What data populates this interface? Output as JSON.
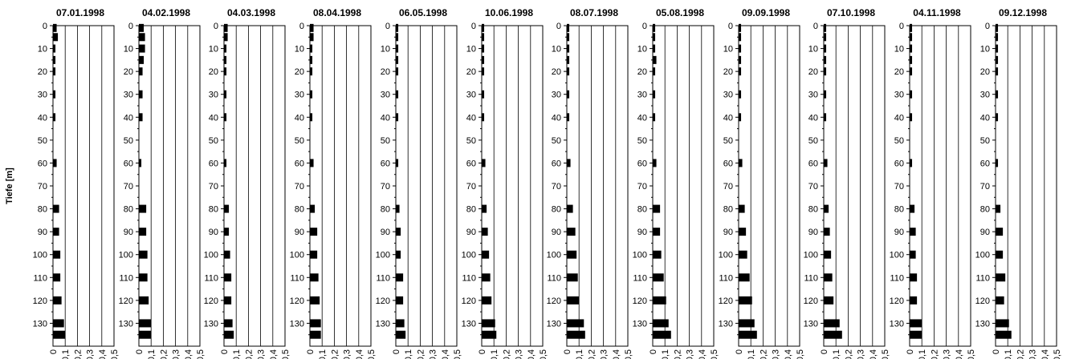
{
  "chart_data": {
    "type": "bar",
    "orientation": "horizontal",
    "ylabel": "Tiefe [m]",
    "depth_ticks": [
      0,
      10,
      20,
      30,
      40,
      50,
      60,
      70,
      80,
      90,
      100,
      110,
      120,
      130
    ],
    "x_ticks": [
      "0",
      "0,1",
      "0,2",
      "0,3",
      "0,4",
      "0,5"
    ],
    "xlim": [
      0,
      0.5
    ],
    "ylim": [
      0,
      140
    ],
    "grid": "vertical",
    "bar_color": "#000000",
    "panels": [
      {
        "title": "07.01.1998",
        "depths": [
          1,
          5,
          10,
          15,
          20,
          30,
          40,
          60,
          80,
          90,
          100,
          110,
          120,
          130,
          135
        ],
        "values": [
          0.03,
          0.04,
          0.02,
          0.02,
          0.02,
          0.02,
          0.02,
          0.03,
          0.05,
          0.05,
          0.06,
          0.06,
          0.07,
          0.09,
          0.1
        ]
      },
      {
        "title": "04.02.1998",
        "depths": [
          1,
          5,
          10,
          15,
          20,
          30,
          40,
          60,
          80,
          90,
          100,
          110,
          120,
          130,
          135
        ],
        "values": [
          0.04,
          0.05,
          0.05,
          0.04,
          0.03,
          0.03,
          0.03,
          0.02,
          0.06,
          0.06,
          0.07,
          0.07,
          0.08,
          0.1,
          0.1
        ]
      },
      {
        "title": "04.03.1998",
        "depths": [
          1,
          5,
          10,
          15,
          20,
          30,
          40,
          60,
          80,
          90,
          100,
          110,
          120,
          130,
          135
        ],
        "values": [
          0.03,
          0.03,
          0.02,
          0.02,
          0.02,
          0.02,
          0.02,
          0.02,
          0.04,
          0.04,
          0.05,
          0.06,
          0.06,
          0.07,
          0.08
        ]
      },
      {
        "title": "08.04.1998",
        "depths": [
          1,
          5,
          10,
          15,
          20,
          30,
          40,
          60,
          80,
          90,
          100,
          110,
          120,
          130,
          135
        ],
        "values": [
          0.03,
          0.03,
          0.02,
          0.02,
          0.02,
          0.02,
          0.02,
          0.03,
          0.04,
          0.06,
          0.06,
          0.07,
          0.08,
          0.09,
          0.09
        ]
      },
      {
        "title": "06.05.1998",
        "depths": [
          1,
          5,
          10,
          15,
          20,
          30,
          40,
          60,
          80,
          90,
          100,
          110,
          120,
          130,
          135
        ],
        "values": [
          0.02,
          0.02,
          0.02,
          0.02,
          0.02,
          0.02,
          0.02,
          0.02,
          0.03,
          0.04,
          0.04,
          0.06,
          0.06,
          0.07,
          0.08
        ]
      },
      {
        "title": "10.06.1998",
        "depths": [
          1,
          5,
          10,
          15,
          20,
          30,
          40,
          60,
          80,
          90,
          100,
          110,
          120,
          130,
          135
        ],
        "values": [
          0.02,
          0.02,
          0.02,
          0.02,
          0.02,
          0.02,
          0.02,
          0.03,
          0.04,
          0.05,
          0.06,
          0.07,
          0.08,
          0.11,
          0.12
        ]
      },
      {
        "title": "08.07.1998",
        "depths": [
          1,
          5,
          10,
          15,
          20,
          30,
          40,
          60,
          80,
          90,
          100,
          110,
          120,
          130,
          135
        ],
        "values": [
          0.02,
          0.02,
          0.02,
          0.02,
          0.02,
          0.02,
          0.02,
          0.03,
          0.05,
          0.07,
          0.08,
          0.09,
          0.1,
          0.14,
          0.15
        ]
      },
      {
        "title": "05.08.1998",
        "depths": [
          1,
          5,
          10,
          15,
          20,
          30,
          40,
          60,
          80,
          90,
          100,
          110,
          120,
          130,
          135
        ],
        "values": [
          0.02,
          0.02,
          0.02,
          0.03,
          0.02,
          0.02,
          0.02,
          0.03,
          0.06,
          0.06,
          0.07,
          0.09,
          0.11,
          0.13,
          0.15
        ]
      },
      {
        "title": "09.09.1998",
        "depths": [
          1,
          5,
          10,
          15,
          20,
          30,
          40,
          60,
          80,
          90,
          100,
          110,
          120,
          130,
          135
        ],
        "values": [
          0.02,
          0.02,
          0.02,
          0.02,
          0.02,
          0.02,
          0.02,
          0.03,
          0.05,
          0.06,
          0.07,
          0.09,
          0.11,
          0.13,
          0.15
        ]
      },
      {
        "title": "07.10.1998",
        "depths": [
          1,
          5,
          10,
          15,
          20,
          30,
          40,
          60,
          80,
          90,
          100,
          110,
          120,
          130,
          135
        ],
        "values": [
          0.02,
          0.02,
          0.02,
          0.02,
          0.02,
          0.02,
          0.02,
          0.03,
          0.04,
          0.05,
          0.06,
          0.07,
          0.08,
          0.13,
          0.15
        ]
      },
      {
        "title": "04.11.1998",
        "depths": [
          1,
          5,
          10,
          15,
          20,
          30,
          40,
          60,
          80,
          90,
          100,
          110,
          120,
          130,
          135
        ],
        "values": [
          0.02,
          0.02,
          0.02,
          0.02,
          0.02,
          0.02,
          0.02,
          0.02,
          0.04,
          0.05,
          0.05,
          0.06,
          0.06,
          0.1,
          0.1
        ]
      },
      {
        "title": "09.12.1998",
        "depths": [
          1,
          5,
          10,
          15,
          20,
          30,
          40,
          60,
          80,
          90,
          100,
          110,
          120,
          130,
          135
        ],
        "values": [
          0.02,
          0.02,
          0.02,
          0.02,
          0.02,
          0.02,
          0.02,
          0.02,
          0.04,
          0.06,
          0.06,
          0.08,
          0.07,
          0.11,
          0.13
        ]
      }
    ]
  }
}
